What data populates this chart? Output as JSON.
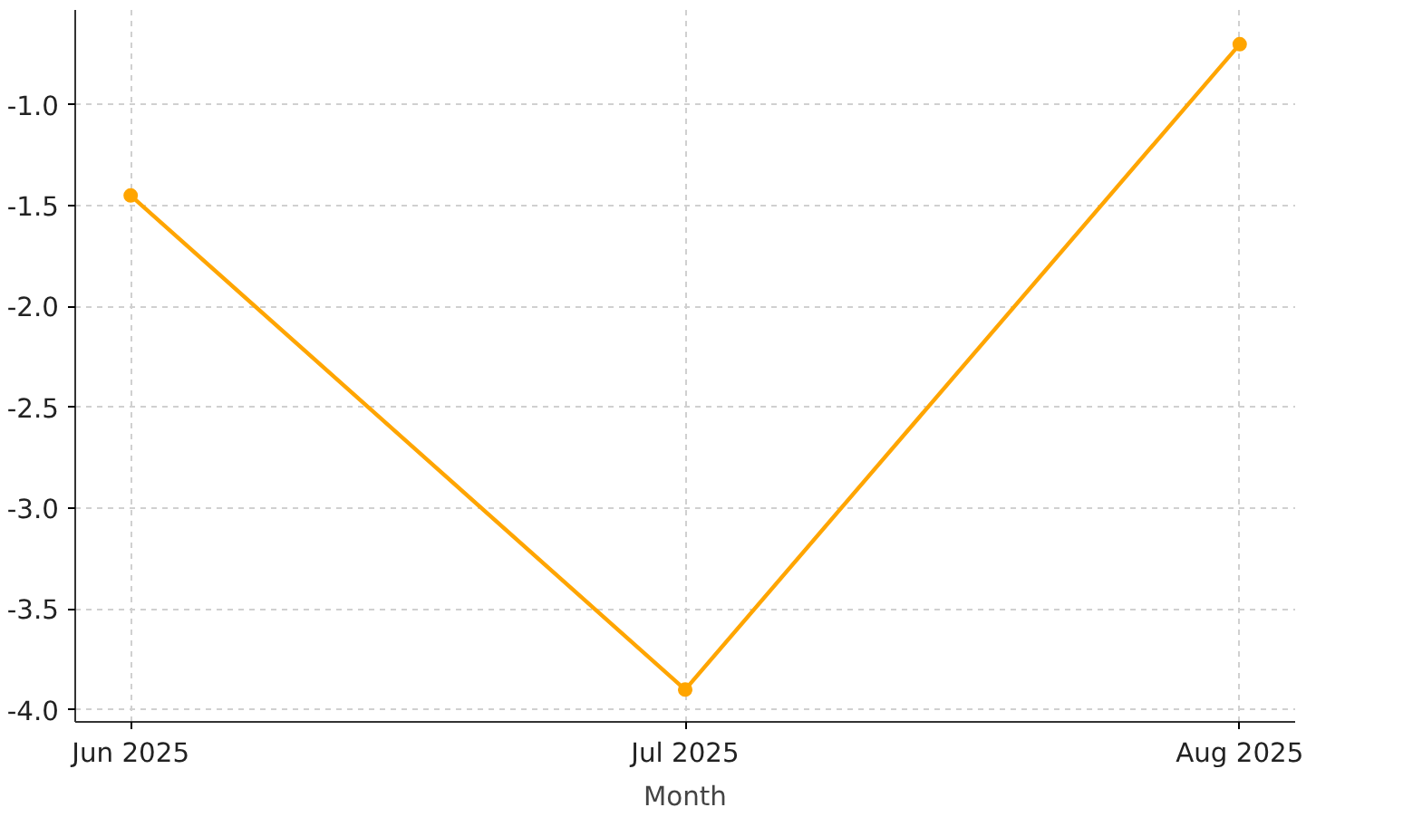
{
  "chart_data": {
    "type": "line",
    "xlabel": "Month",
    "categories": [
      "Jun 2025",
      "Jul 2025",
      "Aug 2025"
    ],
    "series": [
      {
        "color": "#ffa500",
        "values": [
          -1.45,
          -3.9,
          -0.7
        ]
      }
    ],
    "ylim": [
      -4.06,
      -0.53
    ],
    "yticks": [
      {
        "value": -4,
        "label": "-4.0"
      },
      {
        "value": -3.5,
        "label": "-3.5"
      },
      {
        "value": -3,
        "label": "-3.0"
      },
      {
        "value": -2.5,
        "label": "-2.5"
      },
      {
        "value": -2,
        "label": "-2.0"
      },
      {
        "value": -1.5,
        "label": "-1.5"
      },
      {
        "value": -1,
        "label": "-1.0"
      }
    ],
    "grid": true,
    "marker": "circle",
    "line_style": "solid"
  }
}
